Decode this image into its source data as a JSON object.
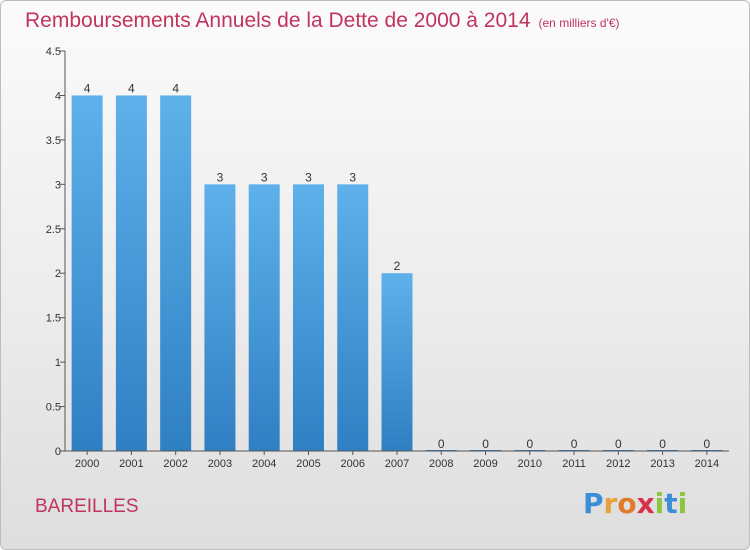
{
  "title": "Remboursements Annuels de la Dette de 2000 à 2014",
  "subtitle": "(en milliers d'€)",
  "commune": "BAREILLES",
  "logo": {
    "letters": [
      "P",
      "r",
      "o",
      "x",
      "i",
      "t",
      "i"
    ],
    "colors": [
      "#3a8fd6",
      "#e8a23a",
      "#e07b2c",
      "#d8324a",
      "#8cc63f",
      "#3a8fd6",
      "#8cc63f"
    ]
  },
  "chart_data": {
    "type": "bar",
    "categories": [
      "2000",
      "2001",
      "2002",
      "2003",
      "2004",
      "2005",
      "2006",
      "2007",
      "2008",
      "2009",
      "2010",
      "2011",
      "2012",
      "2013",
      "2014"
    ],
    "values": [
      4,
      4,
      4,
      3,
      3,
      3,
      3,
      2,
      0,
      0,
      0,
      0,
      0,
      0,
      0
    ],
    "ylim": [
      0,
      4.5
    ],
    "yticks": [
      0,
      0.5,
      1,
      1.5,
      2,
      2.5,
      3,
      3.5,
      4,
      4.5
    ],
    "ytick_labels": [
      "0",
      "0.5",
      "1",
      "1.5",
      "2",
      "2.5",
      "3",
      "3.5",
      "4",
      "4.5"
    ],
    "bar_color_top": "#5eb1ea",
    "bar_color_bottom": "#2f7fc3",
    "grid": false,
    "legend": "none"
  }
}
